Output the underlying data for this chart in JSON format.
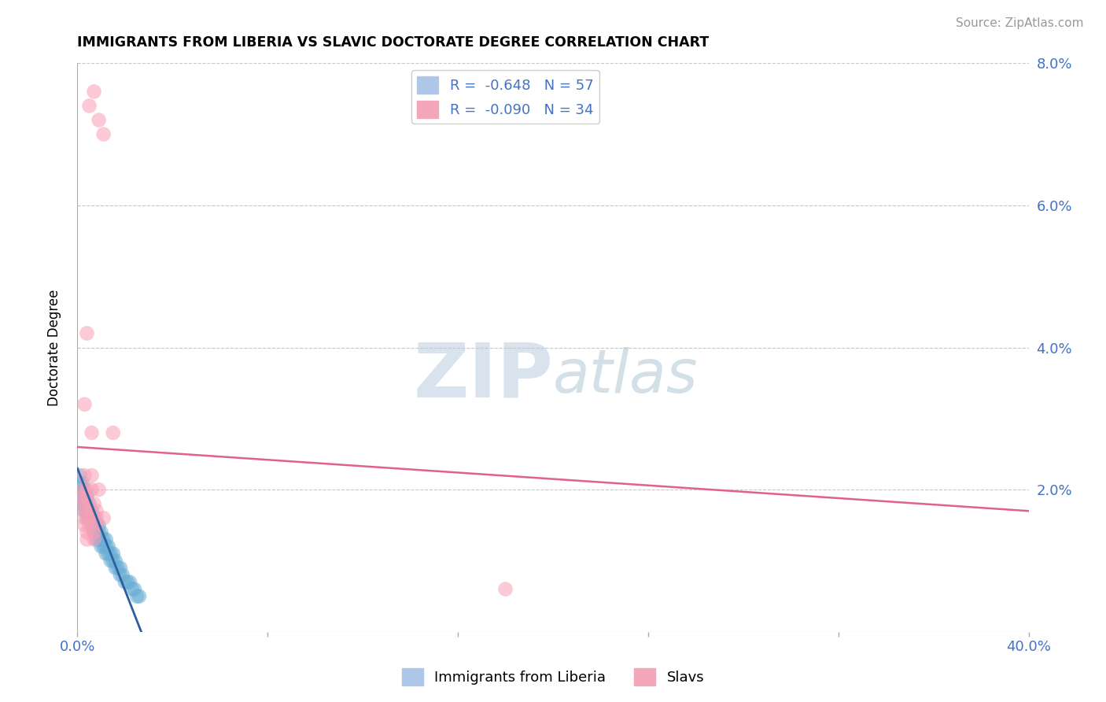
{
  "title": "IMMIGRANTS FROM LIBERIA VS SLAVIC DOCTORATE DEGREE CORRELATION CHART",
  "source": "Source: ZipAtlas.com",
  "ylabel_label": "Doctorate Degree",
  "x_min": 0.0,
  "x_max": 0.4,
  "y_min": 0.0,
  "y_max": 0.08,
  "x_ticks": [
    0.0,
    0.08,
    0.16,
    0.24,
    0.32,
    0.4
  ],
  "x_tick_labels": [
    "0.0%",
    "",
    "",
    "",
    "",
    "40.0%"
  ],
  "y_ticks": [
    0.0,
    0.02,
    0.04,
    0.06,
    0.08
  ],
  "y_tick_labels": [
    "",
    "2.0%",
    "4.0%",
    "6.0%",
    "8.0%"
  ],
  "legend_entries": [
    {
      "label": "R =  -0.648   N = 57",
      "color": "#aec6e8"
    },
    {
      "label": "R =  -0.090   N = 34",
      "color": "#f4a7b9"
    }
  ],
  "blue_scatter": [
    [
      0.001,
      0.022
    ],
    [
      0.001,
      0.021
    ],
    [
      0.001,
      0.02
    ],
    [
      0.002,
      0.021
    ],
    [
      0.002,
      0.02
    ],
    [
      0.002,
      0.019
    ],
    [
      0.002,
      0.018
    ],
    [
      0.003,
      0.02
    ],
    [
      0.003,
      0.019
    ],
    [
      0.003,
      0.018
    ],
    [
      0.003,
      0.017
    ],
    [
      0.004,
      0.019
    ],
    [
      0.004,
      0.018
    ],
    [
      0.004,
      0.017
    ],
    [
      0.004,
      0.016
    ],
    [
      0.005,
      0.018
    ],
    [
      0.005,
      0.017
    ],
    [
      0.005,
      0.016
    ],
    [
      0.006,
      0.017
    ],
    [
      0.006,
      0.016
    ],
    [
      0.006,
      0.015
    ],
    [
      0.007,
      0.016
    ],
    [
      0.007,
      0.015
    ],
    [
      0.007,
      0.014
    ],
    [
      0.008,
      0.015
    ],
    [
      0.008,
      0.014
    ],
    [
      0.008,
      0.013
    ],
    [
      0.009,
      0.015
    ],
    [
      0.009,
      0.014
    ],
    [
      0.009,
      0.013
    ],
    [
      0.01,
      0.014
    ],
    [
      0.01,
      0.013
    ],
    [
      0.01,
      0.012
    ],
    [
      0.011,
      0.013
    ],
    [
      0.011,
      0.012
    ],
    [
      0.012,
      0.013
    ],
    [
      0.012,
      0.012
    ],
    [
      0.012,
      0.011
    ],
    [
      0.013,
      0.012
    ],
    [
      0.013,
      0.011
    ],
    [
      0.014,
      0.011
    ],
    [
      0.014,
      0.01
    ],
    [
      0.015,
      0.011
    ],
    [
      0.015,
      0.01
    ],
    [
      0.016,
      0.01
    ],
    [
      0.016,
      0.009
    ],
    [
      0.017,
      0.009
    ],
    [
      0.018,
      0.009
    ],
    [
      0.018,
      0.008
    ],
    [
      0.019,
      0.008
    ],
    [
      0.02,
      0.007
    ],
    [
      0.021,
      0.007
    ],
    [
      0.022,
      0.007
    ],
    [
      0.023,
      0.006
    ],
    [
      0.024,
      0.006
    ],
    [
      0.025,
      0.005
    ],
    [
      0.026,
      0.005
    ]
  ],
  "pink_scatter": [
    [
      0.005,
      0.074
    ],
    [
      0.007,
      0.076
    ],
    [
      0.009,
      0.072
    ],
    [
      0.011,
      0.07
    ],
    [
      0.004,
      0.042
    ],
    [
      0.003,
      0.032
    ],
    [
      0.006,
      0.028
    ],
    [
      0.015,
      0.028
    ],
    [
      0.003,
      0.022
    ],
    [
      0.006,
      0.022
    ],
    [
      0.002,
      0.02
    ],
    [
      0.004,
      0.02
    ],
    [
      0.006,
      0.02
    ],
    [
      0.009,
      0.02
    ],
    [
      0.002,
      0.019
    ],
    [
      0.004,
      0.019
    ],
    [
      0.002,
      0.018
    ],
    [
      0.004,
      0.018
    ],
    [
      0.007,
      0.018
    ],
    [
      0.003,
      0.017
    ],
    [
      0.005,
      0.017
    ],
    [
      0.008,
      0.017
    ],
    [
      0.003,
      0.016
    ],
    [
      0.005,
      0.016
    ],
    [
      0.008,
      0.016
    ],
    [
      0.011,
      0.016
    ],
    [
      0.003,
      0.015
    ],
    [
      0.005,
      0.015
    ],
    [
      0.008,
      0.015
    ],
    [
      0.004,
      0.014
    ],
    [
      0.007,
      0.014
    ],
    [
      0.004,
      0.013
    ],
    [
      0.007,
      0.013
    ],
    [
      0.18,
      0.006
    ]
  ],
  "blue_line_x": [
    0.0,
    0.028
  ],
  "blue_line_y": [
    0.023,
    -0.001
  ],
  "pink_line_x": [
    0.0,
    0.4
  ],
  "pink_line_y": [
    0.026,
    0.017
  ],
  "scatter_color_blue": "#6baed6",
  "scatter_color_pink": "#fa9fb5",
  "line_color_blue": "#2c5f9e",
  "line_color_pink": "#e06090",
  "background_color": "#ffffff",
  "grid_color": "#c8c8c8",
  "watermark_zip_color": "#c8d8e8",
  "watermark_atlas_color": "#b0c8d8"
}
